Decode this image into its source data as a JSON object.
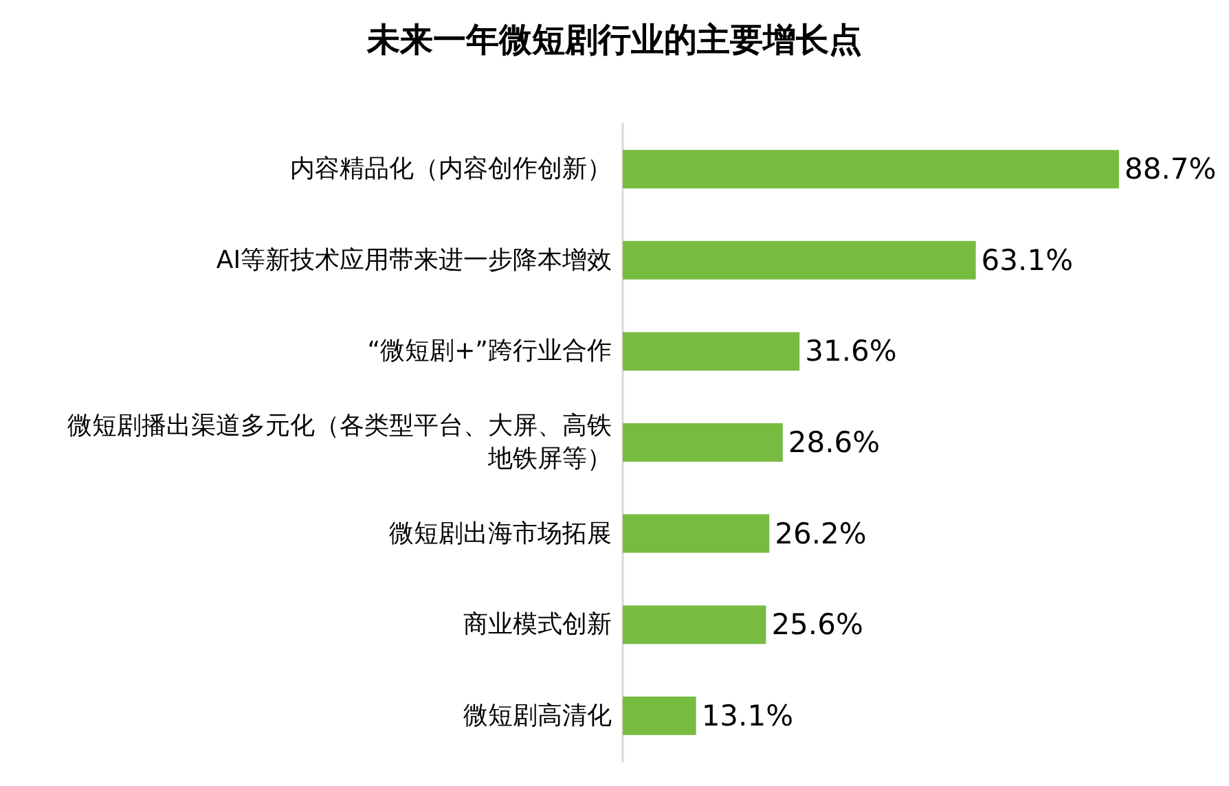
{
  "chart_data": {
    "type": "bar",
    "orientation": "horizontal",
    "title": "未来一年微短剧行业的主要增长点",
    "categories": [
      "内容精品化（内容创作创新）",
      "AI等新技术应用带来进一步降本增效",
      "“微短剧+”跨行业合作",
      "微短剧播出渠道多元化（各类型平台、大屏、高铁地铁屏等）",
      "微短剧出海市场拓展",
      "商业模式创新",
      "微短剧高清化"
    ],
    "values": [
      88.7,
      63.1,
      31.6,
      28.6,
      26.2,
      25.6,
      13.1
    ],
    "value_labels": [
      "88.7%",
      "63.1%",
      "31.6%",
      "28.6%",
      "26.2%",
      "25.6%",
      "13.1%"
    ],
    "color": "#77bc40"
  }
}
